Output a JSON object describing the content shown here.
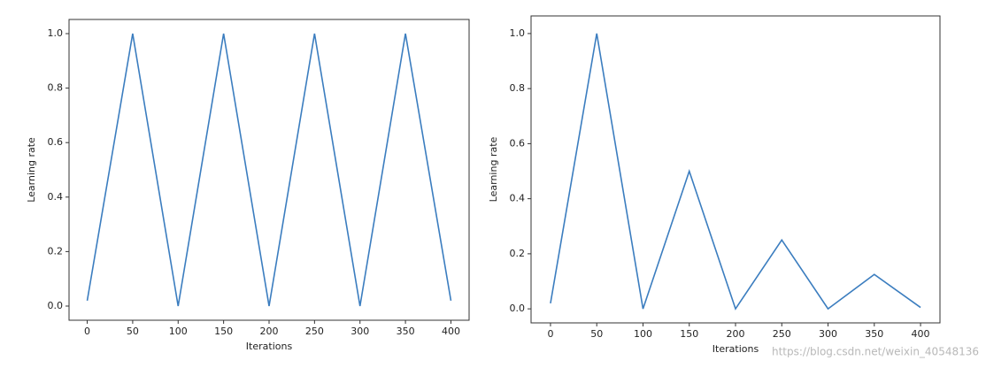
{
  "chart_data": [
    {
      "type": "line",
      "xlabel": "Iterations",
      "ylabel": "Learning rate",
      "x": [
        0,
        50,
        100,
        150,
        200,
        250,
        300,
        350,
        400
      ],
      "series": [
        {
          "color": "#3b7dbf",
          "values": [
            0.02,
            1.0,
            0,
            1.0,
            0,
            1.0,
            0,
            1.0,
            0.02
          ]
        }
      ],
      "xlim": [
        -20,
        420
      ],
      "ylim": [
        -0.052,
        1.052
      ],
      "xticks": [
        0,
        50,
        100,
        150,
        200,
        250,
        300,
        350,
        400
      ],
      "yticks": [
        {
          "value": 0,
          "label": "0.0"
        },
        0.2,
        0.4,
        0.6,
        0.8,
        {
          "value": 1,
          "label": "1.0"
        }
      ]
    },
    {
      "type": "line",
      "xlabel": "Iterations",
      "ylabel": "Learning rate",
      "x": [
        0,
        50,
        100,
        150,
        200,
        250,
        300,
        350,
        400
      ],
      "series": [
        {
          "color": "#3b7dbf",
          "values": [
            0.02,
            1.0,
            0,
            0.5,
            0,
            0.25,
            0,
            0.125,
            0.005
          ]
        }
      ],
      "xlim": [
        -21,
        421
      ],
      "ylim": [
        -0.051,
        1.064
      ],
      "xticks": [
        0,
        50,
        100,
        150,
        200,
        250,
        300,
        350,
        400
      ],
      "yticks": [
        {
          "value": 0,
          "label": "0.0"
        },
        0.2,
        0.4,
        0.6,
        0.8,
        {
          "value": 1,
          "label": "1.0"
        }
      ]
    }
  ],
  "watermark": "https://blog.csdn.net/weixin_40548136"
}
